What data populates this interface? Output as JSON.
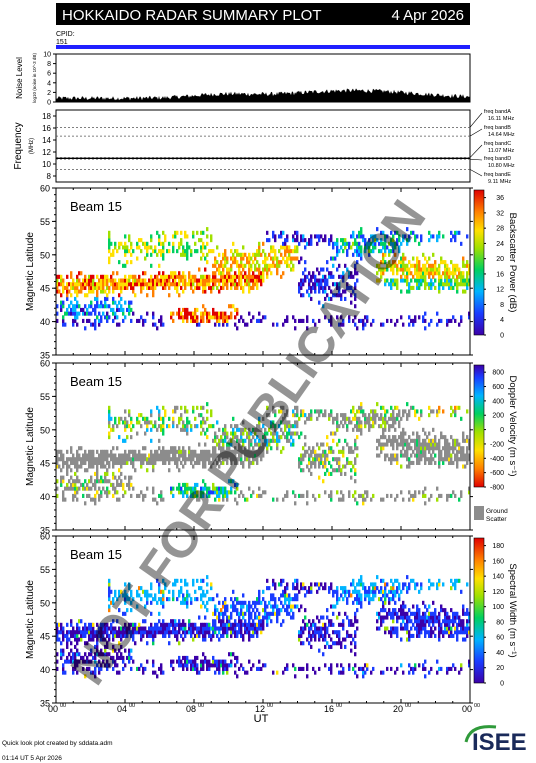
{
  "header": {
    "title": "HOKKAIDO RADAR SUMMARY PLOT",
    "date": "4 Apr 2026",
    "cpid_label": "CPID:",
    "cpid_value": "151"
  },
  "colors": {
    "cpid_bar": "#2020ff",
    "ground_scatter": "#8c8c8c",
    "title_bar": "#000000"
  },
  "noise_panel": {
    "ylabel": "Noise Level",
    "sublabel": "log10 (noise in 10^-3 dB)",
    "ticks": [
      "10",
      "8",
      "6",
      "4",
      "2",
      "0"
    ]
  },
  "frequency_panel": {
    "ylabel": "Frequency",
    "unit": "(MHz)",
    "ticks": [
      "18",
      "16",
      "14",
      "12",
      "10",
      "8"
    ],
    "bands": [
      {
        "name": "freq bandA",
        "value": "16.11 MHz"
      },
      {
        "name": "freq bandB",
        "value": "14.64 MHz"
      },
      {
        "name": "freq bandC",
        "value": "11.07 MHz"
      },
      {
        "name": "freq bandD",
        "value": "10.80 MHz"
      },
      {
        "name": "freq bandE",
        "value": "9.11 MHz"
      }
    ]
  },
  "panels": [
    {
      "beam": "Beam 15",
      "ylabel": "Magnetic Latitude",
      "yticks": [
        "60",
        "55",
        "50",
        "45",
        "40",
        "35"
      ],
      "cbar_label": "Backscatter Power (dB)",
      "cbar_ticks": [
        "36",
        "32",
        "28",
        "24",
        "20",
        "16",
        "12",
        "8",
        "4",
        "0"
      ]
    },
    {
      "beam": "Beam 15",
      "ylabel": "Magnetic Latitude",
      "yticks": [
        "60",
        "55",
        "50",
        "45",
        "40",
        "35"
      ],
      "cbar_label": "Doppler Velocity (m s⁻¹)",
      "cbar_ticks": [
        "800",
        "600",
        "400",
        "200",
        "0",
        "-200",
        "-400",
        "-600",
        "-800"
      ],
      "ground_label_1": "Ground",
      "ground_label_2": "Scatter"
    },
    {
      "beam": "Beam 15",
      "ylabel": "Magnetic Latitude",
      "yticks": [
        "60",
        "55",
        "50",
        "45",
        "40",
        "35"
      ],
      "cbar_label": "Spectral Width (m s⁻¹)",
      "cbar_ticks": [
        "180",
        "160",
        "140",
        "120",
        "100",
        "80",
        "60",
        "40",
        "20",
        "0"
      ]
    }
  ],
  "xaxis": {
    "ticks": [
      "00",
      "04",
      "08",
      "12",
      "16",
      "20",
      "00"
    ],
    "tick_sup": "00",
    "label": "UT"
  },
  "footer": {
    "line1": "Quick look plot created by sddata.adm",
    "line2": "01:14 UT  5 Apr 2026",
    "logo": "ISEE"
  },
  "watermark": "NOT FOR PUBLICATION",
  "chart_data": {
    "type": "heatmap",
    "title": "HOKKAIDO RADAR SUMMARY PLOT",
    "xlabel": "UT",
    "x_range_hours": [
      0,
      24
    ],
    "x_ticks": [
      "00",
      "04",
      "08",
      "12",
      "16",
      "20",
      "00"
    ],
    "ylabel": "Magnetic Latitude",
    "ylim": [
      35,
      60
    ],
    "panels": [
      {
        "quantity": "Backscatter Power (dB)",
        "clim": [
          0,
          38
        ],
        "colormap": "rainbow"
      },
      {
        "quantity": "Doppler Velocity (m s⁻¹)",
        "clim": [
          -800,
          900
        ],
        "colormap": "rainbow-reversed",
        "ground_scatter": true
      },
      {
        "quantity": "Spectral Width (m s⁻¹)",
        "clim": [
          0,
          190
        ],
        "colormap": "rainbow"
      }
    ],
    "noise": {
      "ylim": [
        0,
        10
      ]
    },
    "frequency": {
      "ylim": [
        7,
        19
      ],
      "bands_mhz": [
        16.11,
        14.64,
        11.07,
        10.8,
        9.11
      ]
    }
  }
}
